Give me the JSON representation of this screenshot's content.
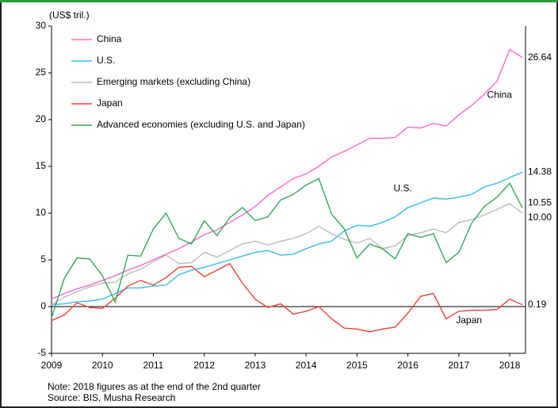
{
  "chart_data": {
    "type": "line",
    "y_unit": "(US$ tril.)",
    "note": "Note: 2018 figures as at the end of the 2nd quarter",
    "source": "Source: BIS, Musha Research",
    "x": [
      2009,
      2009.25,
      2009.5,
      2009.75,
      2010,
      2010.25,
      2010.5,
      2010.75,
      2011,
      2011.25,
      2011.5,
      2011.75,
      2012,
      2012.25,
      2012.5,
      2012.75,
      2013,
      2013.25,
      2013.5,
      2013.75,
      2014,
      2014.25,
      2014.5,
      2014.75,
      2015,
      2015.25,
      2015.5,
      2015.75,
      2016,
      2016.25,
      2016.5,
      2016.75,
      2017,
      2017.25,
      2017.5,
      2017.75,
      2018,
      2018.25
    ],
    "series": [
      {
        "name": "China",
        "color": "#ff66cc",
        "end_label": "26.64",
        "values": [
          0.8,
          1.4,
          1.9,
          2.3,
          2.8,
          3.3,
          3.9,
          4.4,
          5.0,
          5.6,
          6.2,
          6.9,
          7.7,
          8.2,
          9.0,
          9.8,
          10.7,
          11.9,
          12.8,
          13.7,
          14.2,
          15.0,
          16.0,
          16.6,
          17.3,
          18.0,
          18.0,
          18.1,
          19.2,
          19.1,
          19.6,
          19.3,
          20.5,
          21.5,
          22.7,
          24.1,
          27.5,
          26.64
        ]
      },
      {
        "name": "U.S.",
        "color": "#33bbee",
        "end_label": "14.38",
        "values": [
          0.2,
          0.3,
          0.5,
          0.6,
          0.8,
          1.4,
          2.0,
          2.0,
          2.2,
          2.3,
          3.4,
          3.9,
          4.2,
          4.6,
          5.0,
          5.4,
          5.8,
          6.0,
          5.5,
          5.6,
          6.2,
          6.7,
          7.0,
          8.1,
          8.7,
          8.6,
          9.0,
          9.6,
          10.6,
          11.1,
          11.6,
          11.5,
          11.7,
          12.0,
          12.8,
          13.2,
          13.8,
          14.38
        ]
      },
      {
        "name": "Emerging markets (excluding China)",
        "color": "#bbbbbb",
        "end_label": "10.00",
        "values": [
          0.2,
          1.0,
          1.6,
          2.1,
          2.5,
          2.6,
          3.5,
          4.0,
          4.8,
          5.5,
          4.6,
          4.7,
          5.8,
          5.3,
          6.0,
          6.7,
          7.0,
          6.6,
          7.0,
          7.3,
          7.8,
          8.6,
          7.8,
          7.2,
          6.8,
          7.3,
          6.2,
          6.5,
          7.6,
          7.9,
          8.3,
          7.9,
          9.0,
          9.3,
          9.8,
          10.4,
          11.0,
          10.0
        ]
      },
      {
        "name": "Japan",
        "color": "#ee4433",
        "end_label": "0.19",
        "values": [
          -1.5,
          -0.9,
          0.4,
          -0.1,
          -0.2,
          0.9,
          2.2,
          2.8,
          2.3,
          3.1,
          4.2,
          4.3,
          3.2,
          3.9,
          4.6,
          2.5,
          0.8,
          -0.1,
          0.3,
          -0.8,
          -0.5,
          0.0,
          -1.3,
          -2.3,
          -2.4,
          -2.7,
          -2.4,
          -2.2,
          -0.7,
          1.1,
          1.4,
          -1.3,
          -0.5,
          -0.4,
          -0.4,
          -0.3,
          0.8,
          0.19
        ]
      },
      {
        "name": "Advanced economies (excluding U.S. and Japan)",
        "color": "#33aa55",
        "end_label": "10.55",
        "values": [
          -1.2,
          3.0,
          5.2,
          5.1,
          3.3,
          0.5,
          5.5,
          5.4,
          8.3,
          10.0,
          7.3,
          6.7,
          9.2,
          7.6,
          9.5,
          10.6,
          9.2,
          9.6,
          11.4,
          12.0,
          13.0,
          13.7,
          9.9,
          8.3,
          5.2,
          6.7,
          6.2,
          5.1,
          7.8,
          7.4,
          7.8,
          4.7,
          5.8,
          8.9,
          10.7,
          11.7,
          13.2,
          10.55
        ]
      }
    ],
    "annotations": [
      {
        "text": "China",
        "x": 2017.8,
        "y": 22.6
      },
      {
        "text": "U.S.",
        "x": 2015.9,
        "y": 12.6
      },
      {
        "text": "Japan",
        "x": 2017.2,
        "y": -1.5
      }
    ],
    "xlim": [
      2009,
      2018.31
    ],
    "ylim": [
      -5,
      30
    ],
    "xticks": [
      2009,
      2010,
      2011,
      2012,
      2013,
      2014,
      2015,
      2016,
      2017,
      2018
    ],
    "yticks": [
      -5,
      0,
      5,
      10,
      15,
      20,
      25,
      30
    ],
    "zero_line": true,
    "legend": "upper left"
  }
}
